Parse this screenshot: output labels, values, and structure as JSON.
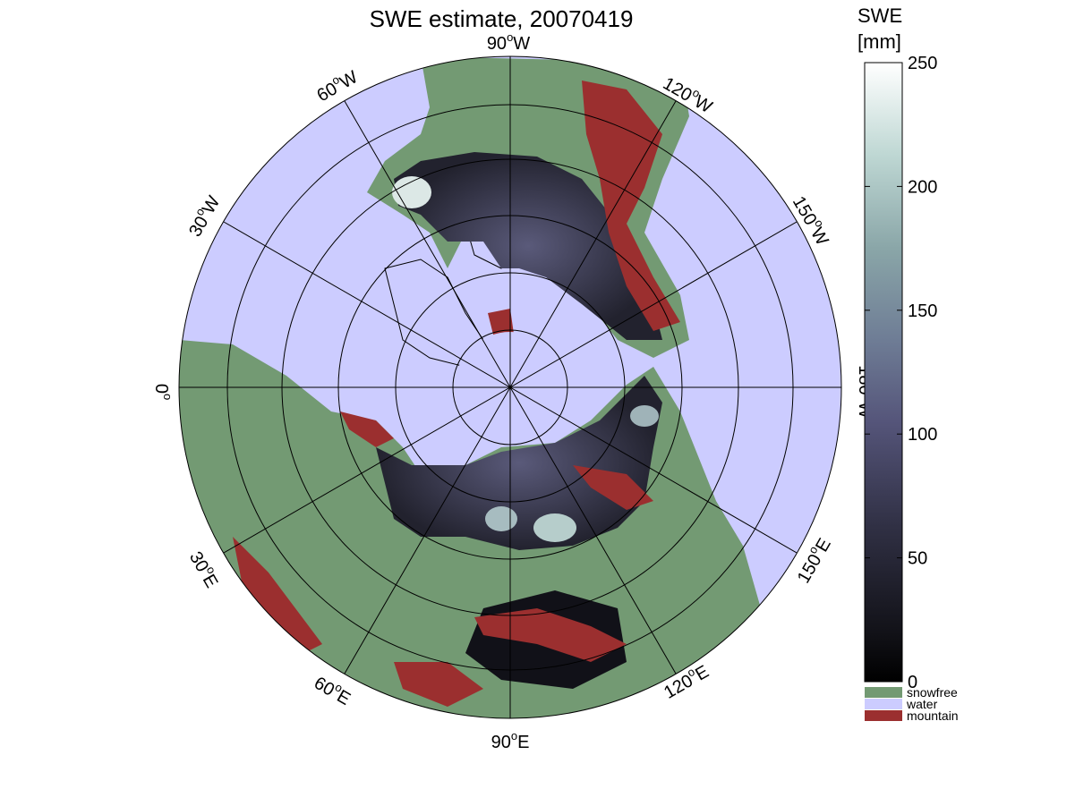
{
  "title": "SWE estimate, 20070419",
  "colorbar": {
    "label_line1": "SWE",
    "label_line2": "[mm]",
    "ticks": [
      0,
      50,
      100,
      150,
      200,
      250
    ],
    "range": [
      0,
      250
    ],
    "categories": [
      {
        "label": "snowfree",
        "color": "#739A73"
      },
      {
        "label": "water",
        "color": "#CCCCFF"
      },
      {
        "label": "mountain",
        "color": "#9B2F2F"
      }
    ]
  },
  "map": {
    "projection": "north polar stereographic",
    "ocean_color": "#CCCCFF",
    "land_color": "#739A73",
    "mountain_color": "#9B2F2F",
    "longitude_labels": [
      {
        "id": "lon-90w",
        "text": "90",
        "suffix": "W"
      },
      {
        "id": "lon-120w",
        "text": "120",
        "suffix": "W"
      },
      {
        "id": "lon-150w",
        "text": "150",
        "suffix": "W"
      },
      {
        "id": "lon-180w",
        "text": "180",
        "suffix": "W"
      },
      {
        "id": "lon-150e",
        "text": "150",
        "suffix": "E"
      },
      {
        "id": "lon-120e",
        "text": "120",
        "suffix": "E"
      },
      {
        "id": "lon-90e",
        "text": "90",
        "suffix": "E"
      },
      {
        "id": "lon-60e",
        "text": "60",
        "suffix": "E"
      },
      {
        "id": "lon-30e",
        "text": "30",
        "suffix": "E"
      },
      {
        "id": "lon-0",
        "text": "0",
        "suffix": ""
      },
      {
        "id": "lon-30w",
        "text": "30",
        "suffix": "W"
      },
      {
        "id": "lon-60w",
        "text": "60",
        "suffix": "W"
      }
    ]
  }
}
